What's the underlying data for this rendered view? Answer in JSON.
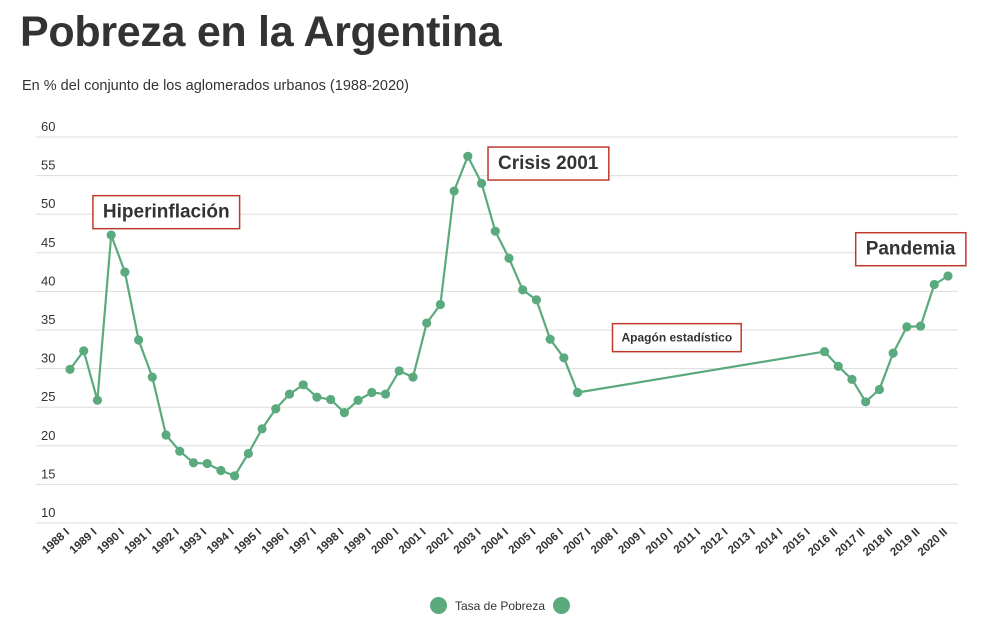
{
  "header": {
    "title": "Pobreza en la Argentina",
    "subtitle": "En % del conjunto de los aglomerados urbanos (1988-2020)"
  },
  "legend": {
    "label": "Tasa de Pobreza",
    "color": "#5aaa7e"
  },
  "annotation_color": "#c0392b",
  "chart_data": {
    "type": "line",
    "title": "Pobreza en la Argentina",
    "subtitle": "En % del conjunto de los aglomerados urbanos (1988-2020)",
    "xlabel": "",
    "ylabel": "",
    "ylim": [
      10,
      60
    ],
    "yticks": [
      10,
      15,
      20,
      25,
      30,
      35,
      40,
      45,
      50,
      55,
      60
    ],
    "grid": true,
    "legend_position": "bottom-center",
    "x_labels": [
      "1988 I",
      "1989 I",
      "1990 I",
      "1991 I",
      "1992 I",
      "1993 I",
      "1994 I",
      "1995 I",
      "1996 I",
      "1997 I",
      "1998 I",
      "1999 I",
      "2000 I",
      "2001 I",
      "2002 I",
      "2003 I",
      "2004 I",
      "2005 I",
      "2006 I",
      "2007 I",
      "2008 I",
      "2009 I",
      "2010 I",
      "2011 I",
      "2012 I",
      "2013 I",
      "2014 I",
      "2015 I",
      "2016 II",
      "2017 II",
      "2018 II",
      "2019 II",
      "2020 II"
    ],
    "series": [
      {
        "name": "Tasa de Pobreza",
        "points": [
          {
            "x": 0.0,
            "y": 29.9
          },
          {
            "x": 0.5,
            "y": 32.3
          },
          {
            "x": 1.0,
            "y": 25.9
          },
          {
            "x": 1.5,
            "y": 47.3
          },
          {
            "x": 2.0,
            "y": 42.5
          },
          {
            "x": 2.5,
            "y": 33.7
          },
          {
            "x": 3.0,
            "y": 28.9
          },
          {
            "x": 3.5,
            "y": 21.4
          },
          {
            "x": 4.0,
            "y": 19.3
          },
          {
            "x": 4.5,
            "y": 17.8
          },
          {
            "x": 5.0,
            "y": 17.7
          },
          {
            "x": 5.5,
            "y": 16.8
          },
          {
            "x": 6.0,
            "y": 16.1
          },
          {
            "x": 6.5,
            "y": 19.0
          },
          {
            "x": 7.0,
            "y": 22.2
          },
          {
            "x": 7.5,
            "y": 24.8
          },
          {
            "x": 8.0,
            "y": 26.7
          },
          {
            "x": 8.5,
            "y": 27.9
          },
          {
            "x": 9.0,
            "y": 26.3
          },
          {
            "x": 9.5,
            "y": 26.0
          },
          {
            "x": 10.0,
            "y": 24.3
          },
          {
            "x": 10.5,
            "y": 25.9
          },
          {
            "x": 11.0,
            "y": 26.9
          },
          {
            "x": 11.5,
            "y": 26.7
          },
          {
            "x": 12.0,
            "y": 29.7
          },
          {
            "x": 12.5,
            "y": 28.9
          },
          {
            "x": 13.0,
            "y": 35.9
          },
          {
            "x": 13.5,
            "y": 38.3
          },
          {
            "x": 14.0,
            "y": 53.0
          },
          {
            "x": 14.5,
            "y": 57.5
          },
          {
            "x": 15.0,
            "y": 54.0
          },
          {
            "x": 15.5,
            "y": 47.8
          },
          {
            "x": 16.0,
            "y": 44.3
          },
          {
            "x": 16.5,
            "y": 40.2
          },
          {
            "x": 17.0,
            "y": 38.9
          },
          {
            "x": 17.5,
            "y": 33.8
          },
          {
            "x": 18.0,
            "y": 31.4
          },
          {
            "x": 18.5,
            "y": 26.9
          },
          {
            "x": 27.5,
            "y": 32.2
          },
          {
            "x": 28.0,
            "y": 30.3
          },
          {
            "x": 28.5,
            "y": 28.6
          },
          {
            "x": 29.0,
            "y": 25.7
          },
          {
            "x": 29.5,
            "y": 27.3
          },
          {
            "x": 30.0,
            "y": 32.0
          },
          {
            "x": 30.5,
            "y": 35.4
          },
          {
            "x": 31.0,
            "y": 35.5
          },
          {
            "x": 31.5,
            "y": 40.9
          },
          {
            "x": 32.0,
            "y": 42.0
          }
        ]
      }
    ],
    "annotations": [
      {
        "text": "Hiperinflación",
        "x": 1.2,
        "y": 50.2,
        "size": "large"
      },
      {
        "text": "Crisis 2001",
        "x": 15.6,
        "y": 56.5,
        "size": "large"
      },
      {
        "text": "Apagón estadístico",
        "x": 20.1,
        "y": 33.9,
        "size": "small"
      },
      {
        "text": "Pandemia",
        "x": 29.0,
        "y": 45.4,
        "size": "large"
      }
    ]
  }
}
